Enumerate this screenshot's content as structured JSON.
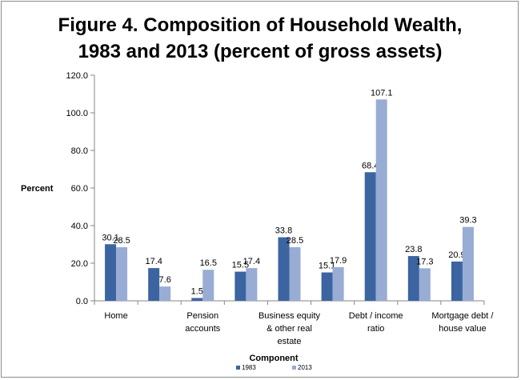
{
  "chart_data": {
    "type": "bar",
    "title_lines": [
      "Figure 4. Composition of Household Wealth,",
      "1983 and 2013 (percent of gross assets)"
    ],
    "xlabel": "Component",
    "ylabel": "Percent",
    "ylim": [
      0,
      120
    ],
    "yticks": [
      "0.0",
      "20.0",
      "40.0",
      "60.0",
      "80.0",
      "100.0",
      "120.0"
    ],
    "grid": false,
    "legend_position": "bottom",
    "categories": [
      [
        "Home"
      ],
      [
        ""
      ],
      [
        "Pension",
        "accounts"
      ],
      [
        ""
      ],
      [
        "Business equity",
        "& other real",
        "estate"
      ],
      [
        ""
      ],
      [
        "Debt / income",
        "ratio"
      ],
      [
        ""
      ],
      [
        "Mortgage debt /",
        "house value"
      ]
    ],
    "series": [
      {
        "name": "1983",
        "color": "#3c64a0",
        "values": [
          30.1,
          17.4,
          1.5,
          15.5,
          33.8,
          15.1,
          68.4,
          23.8,
          20.9
        ],
        "labels": [
          "30.1",
          "17.4",
          "1.5",
          "15.5",
          "33.8",
          "15.1",
          "68.4",
          "23.8",
          "20.9"
        ]
      },
      {
        "name": "2013",
        "color": "#98acd4",
        "values": [
          28.5,
          7.6,
          16.5,
          17.4,
          28.5,
          17.9,
          107.1,
          17.3,
          39.3
        ],
        "labels": [
          "28.5",
          "7.6",
          "16.5",
          "17.4",
          "28.5",
          "17.9",
          "107.1",
          "17.3",
          "39.3"
        ]
      }
    ]
  }
}
